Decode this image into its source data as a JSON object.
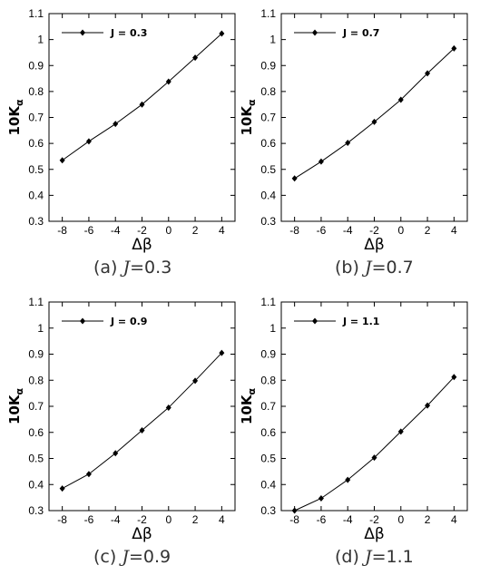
{
  "chart_data": [
    {
      "type": "line",
      "panel_id": "a",
      "caption_letter": "(a)",
      "caption_var": "J",
      "caption_value": "=0.3",
      "xlabel": "Δβ",
      "ylabel_main": "10K",
      "ylabel_sub": "α",
      "xlim": [
        -9,
        5
      ],
      "ylim": [
        0.3,
        1.1
      ],
      "xticks": [
        -8,
        -6,
        -4,
        -2,
        0,
        2,
        4
      ],
      "yticks": [
        0.3,
        0.4,
        0.5,
        0.6,
        0.7,
        0.8,
        0.9,
        1,
        1.1
      ],
      "legend_position": "top-left",
      "series": [
        {
          "name": "J = 0.3",
          "x": [
            -8,
            -6,
            -4,
            -2,
            0,
            2,
            4
          ],
          "y": [
            0.535,
            0.608,
            0.675,
            0.75,
            0.838,
            0.93,
            1.023
          ]
        }
      ]
    },
    {
      "type": "line",
      "panel_id": "b",
      "caption_letter": "(b)",
      "caption_var": "J",
      "caption_value": "=0.7",
      "xlabel": "Δβ",
      "ylabel_main": "10K",
      "ylabel_sub": "α",
      "xlim": [
        -9,
        5
      ],
      "ylim": [
        0.3,
        1.1
      ],
      "xticks": [
        -8,
        -6,
        -4,
        -2,
        0,
        2,
        4
      ],
      "yticks": [
        0.3,
        0.4,
        0.5,
        0.6,
        0.7,
        0.8,
        0.9,
        1,
        1.1
      ],
      "legend_position": "top-left",
      "series": [
        {
          "name": "J = 0.7",
          "x": [
            -8,
            -6,
            -4,
            -2,
            0,
            2,
            4
          ],
          "y": [
            0.465,
            0.53,
            0.602,
            0.683,
            0.768,
            0.87,
            0.966
          ]
        }
      ]
    },
    {
      "type": "line",
      "panel_id": "c",
      "caption_letter": "(c)",
      "caption_var": "J",
      "caption_value": "=0.9",
      "xlabel": "Δβ",
      "ylabel_main": "10K",
      "ylabel_sub": "α",
      "xlim": [
        -9,
        5
      ],
      "ylim": [
        0.3,
        1.1
      ],
      "xticks": [
        -8,
        -6,
        -4,
        -2,
        0,
        2,
        4
      ],
      "yticks": [
        0.3,
        0.4,
        0.5,
        0.6,
        0.7,
        0.8,
        0.9,
        1,
        1.1
      ],
      "legend_position": "top-left",
      "series": [
        {
          "name": "J = 0.9",
          "x": [
            -8,
            -6,
            -4,
            -2,
            0,
            2,
            4
          ],
          "y": [
            0.385,
            0.44,
            0.52,
            0.608,
            0.695,
            0.798,
            0.905
          ]
        }
      ]
    },
    {
      "type": "line",
      "panel_id": "d",
      "caption_letter": "(d)",
      "caption_var": "J",
      "caption_value": "=1.1",
      "xlabel": "Δβ",
      "ylabel_main": "10K",
      "ylabel_sub": "α",
      "xlim": [
        -9,
        5
      ],
      "ylim": [
        0.3,
        1.1
      ],
      "xticks": [
        -8,
        -6,
        -4,
        -2,
        0,
        2,
        4
      ],
      "yticks": [
        0.3,
        0.4,
        0.5,
        0.6,
        0.7,
        0.8,
        0.9,
        1,
        1.1
      ],
      "legend_position": "top-left",
      "series": [
        {
          "name": "J = 1.1",
          "x": [
            -8,
            -6,
            -4,
            -2,
            0,
            2,
            4
          ],
          "y": [
            0.3,
            0.347,
            0.418,
            0.503,
            0.603,
            0.703,
            0.812
          ]
        }
      ]
    }
  ]
}
